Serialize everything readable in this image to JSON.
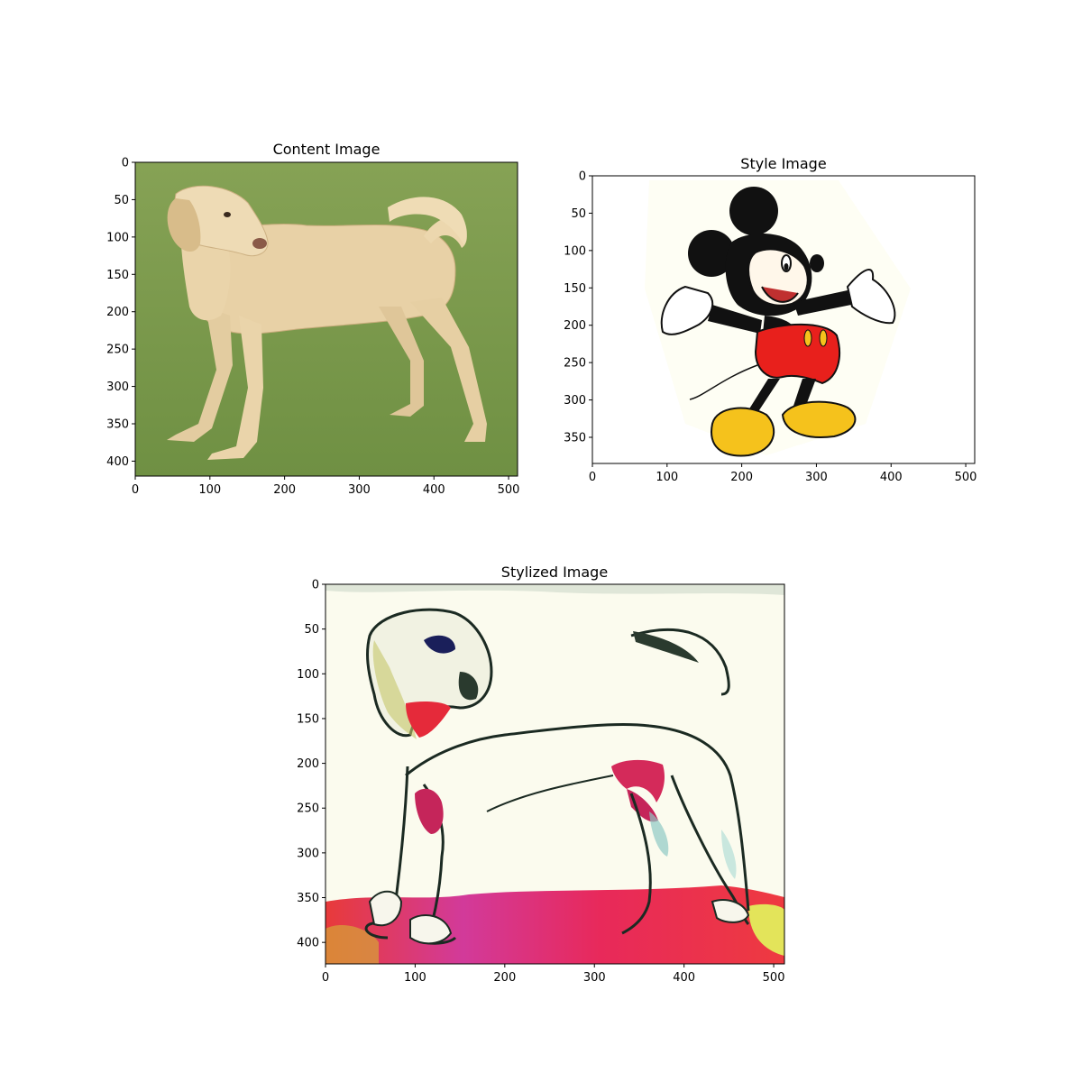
{
  "panels": [
    {
      "id": "content",
      "title": "Content Image",
      "subject": "yellow labrador retriever standing on grass",
      "width_units": 512,
      "height_units": 420,
      "x_ticks": [
        0,
        100,
        200,
        300,
        400,
        500
      ],
      "y_ticks": [
        0,
        50,
        100,
        150,
        200,
        250,
        300,
        350,
        400
      ],
      "colors": {
        "background": "#7f9e4e",
        "subject": "#e6cfa4"
      }
    },
    {
      "id": "style",
      "title": "Style Image",
      "subject": "cartoon mouse with arms outstretched",
      "width_units": 512,
      "height_units": 385,
      "x_ticks": [
        0,
        100,
        200,
        300,
        400,
        500
      ],
      "y_ticks": [
        0,
        50,
        100,
        150,
        200,
        250,
        300,
        350
      ],
      "colors": {
        "background": "#ffffff",
        "ink": "#111111",
        "shorts": "#e8201c",
        "shoes": "#f5c21c"
      }
    },
    {
      "id": "stylized",
      "title": "Stylized Image",
      "subject": "labrador re-rendered in cartoon ink style",
      "width_units": 512,
      "height_units": 424,
      "x_ticks": [
        0,
        100,
        200,
        300,
        400,
        500
      ],
      "y_ticks": [
        0,
        50,
        100,
        150,
        200,
        250,
        300,
        350,
        400
      ],
      "colors": {
        "background": "#fbfbee",
        "ink": "#1b2a22",
        "accent": "#e52a4a",
        "ground": "#e8295a"
      }
    }
  ]
}
